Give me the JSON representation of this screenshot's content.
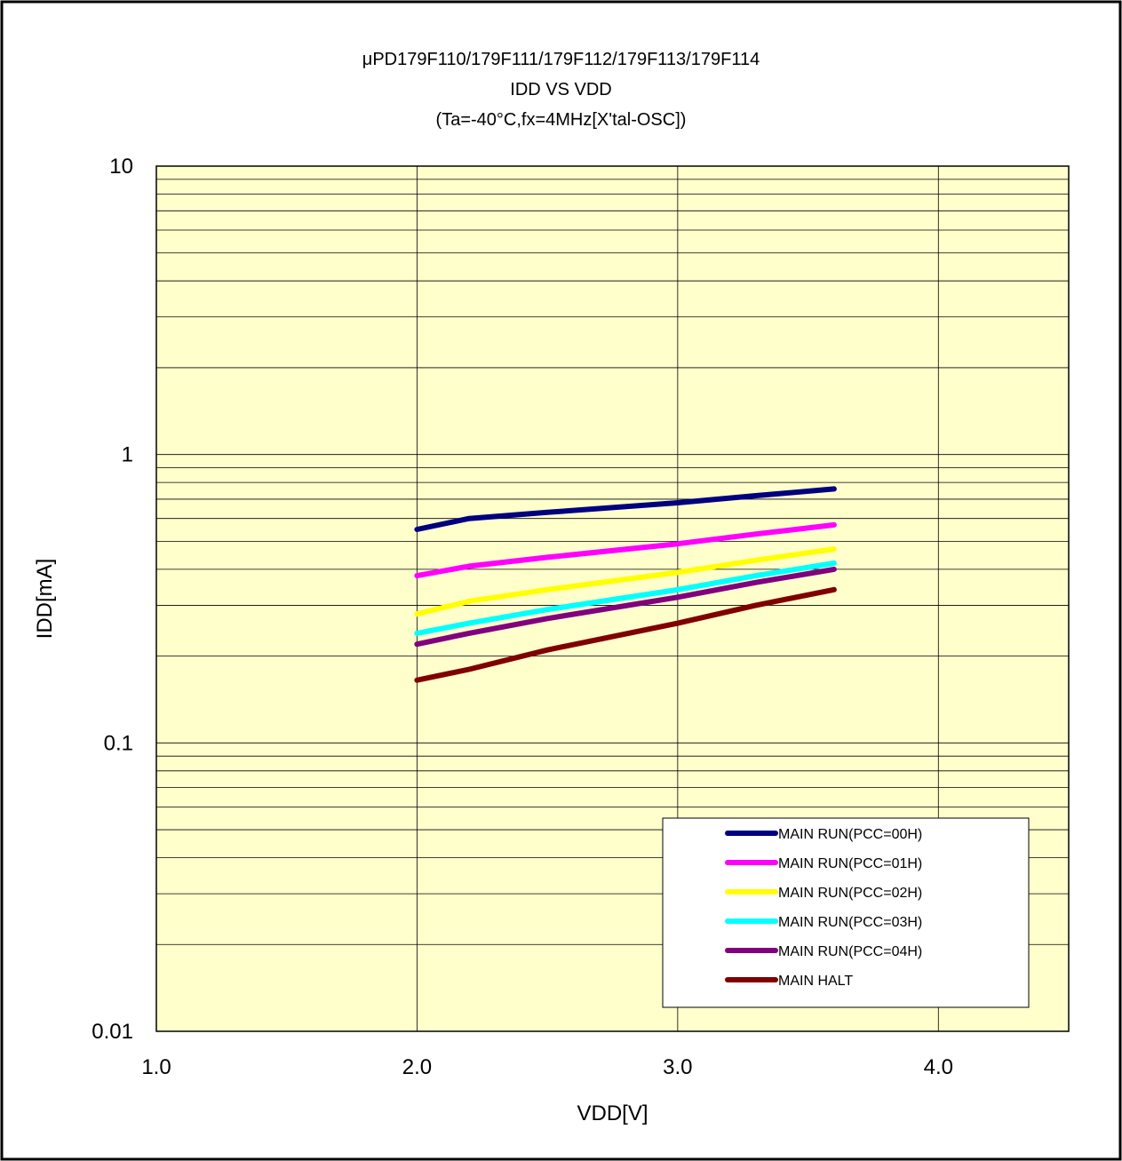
{
  "chart_data": {
    "type": "line",
    "title_lines": [
      "μPD179F110/179F111/179F112/179F113/179F114",
      "IDD VS VDD",
      "(Ta=-40°C,fx=4MHz[X'tal-OSC])"
    ],
    "xlabel": "VDD[V]",
    "ylabel": "IDD[mA]",
    "xlim": [
      1.0,
      4.5
    ],
    "ylim": [
      0.01,
      10
    ],
    "y_scale": "log",
    "x_ticks": [
      1.0,
      2.0,
      3.0,
      4.0
    ],
    "x_tick_labels": [
      "1.0",
      "2.0",
      "3.0",
      "4.0"
    ],
    "y_ticks": [
      0.01,
      0.1,
      1,
      10
    ],
    "y_tick_labels": [
      "0.01",
      "0.1",
      "1",
      "10"
    ],
    "grid": true,
    "plot_background": "#ffffcc",
    "legend_position": "bottom-right",
    "x": [
      2.0,
      2.2,
      2.5,
      3.0,
      3.3,
      3.6
    ],
    "series": [
      {
        "name": "MAIN RUN(PCC=00H)",
        "color": "#000080",
        "values": [
          0.55,
          0.6,
          0.63,
          0.68,
          0.72,
          0.76
        ]
      },
      {
        "name": "MAIN RUN(PCC=01H)",
        "color": "#ff00ff",
        "values": [
          0.38,
          0.41,
          0.44,
          0.49,
          0.53,
          0.57
        ]
      },
      {
        "name": "MAIN RUN(PCC=02H)",
        "color": "#ffff00",
        "values": [
          0.28,
          0.31,
          0.34,
          0.39,
          0.43,
          0.47
        ]
      },
      {
        "name": "MAIN RUN(PCC=03H)",
        "color": "#00ffff",
        "values": [
          0.24,
          0.26,
          0.29,
          0.34,
          0.38,
          0.42
        ]
      },
      {
        "name": "MAIN RUN(PCC=04H)",
        "color": "#800080",
        "values": [
          0.22,
          0.24,
          0.27,
          0.32,
          0.36,
          0.4
        ]
      },
      {
        "name": "MAIN HALT",
        "color": "#800000",
        "values": [
          0.165,
          0.18,
          0.21,
          0.26,
          0.3,
          0.34
        ]
      }
    ]
  }
}
